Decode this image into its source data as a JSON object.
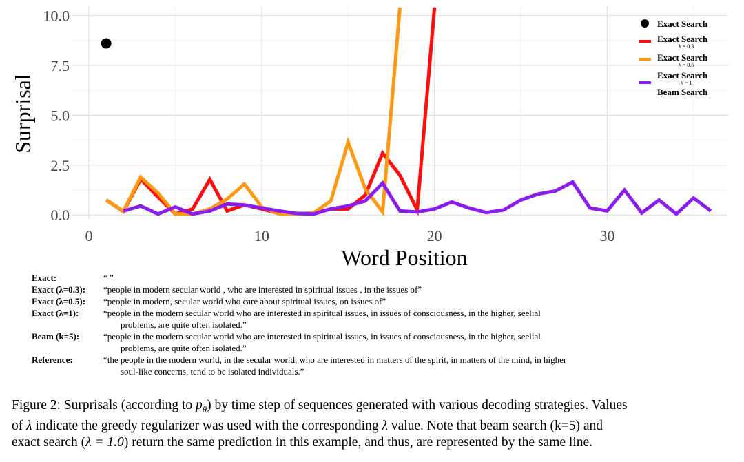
{
  "chart_data": {
    "type": "line",
    "xlabel": "Word Position",
    "ylabel": "Surprisal",
    "xlim": [
      -1,
      37
    ],
    "ylim": [
      -0.2,
      10.5
    ],
    "xticks": [
      0,
      10,
      20,
      30
    ],
    "yticks": [
      0.0,
      2.5,
      5.0,
      7.5,
      10.0
    ],
    "ytick_labels": [
      "0.0",
      "2.5",
      "5.0",
      "7.5",
      "10.0"
    ],
    "grid": true,
    "legend_position": "top-right",
    "series": [
      {
        "name": "Exact Search",
        "kind": "point",
        "color": "#000000",
        "x": [
          1
        ],
        "y": [
          8.6
        ]
      },
      {
        "name": "Exact Search",
        "subscript": "λ = 0.3",
        "kind": "line",
        "color": "#ff0d0d",
        "x": [
          1,
          2,
          3,
          4,
          5,
          6,
          7,
          8,
          9,
          10,
          11,
          12,
          13,
          14,
          15,
          16,
          17,
          18,
          19,
          20
        ],
        "y": [
          0.75,
          0.18,
          1.8,
          0.9,
          0.05,
          0.3,
          1.78,
          0.2,
          0.5,
          0.3,
          0.08,
          0.05,
          0.1,
          0.3,
          0.3,
          1.0,
          3.1,
          2.0,
          0.25,
          10.4
        ]
      },
      {
        "name": "Exact Search",
        "subscript": "λ = 0.5",
        "kind": "line",
        "color": "#ff9912",
        "x": [
          1,
          2,
          3,
          4,
          5,
          6,
          7,
          8,
          9,
          10,
          11,
          12,
          13,
          14,
          15,
          16,
          17,
          18
        ],
        "y": [
          0.75,
          0.2,
          1.9,
          1.1,
          0.05,
          0.05,
          0.3,
          0.8,
          1.55,
          0.4,
          0.05,
          0.05,
          0.1,
          0.7,
          3.65,
          1.3,
          0.15,
          10.4
        ]
      },
      {
        "name": "Exact Search",
        "subscript": "λ = 1",
        "name2": "Beam Search",
        "kind": "line",
        "color": "#8b1cf0",
        "x": [
          2,
          3,
          4,
          5,
          6,
          7,
          8,
          9,
          10,
          11,
          12,
          13,
          14,
          15,
          16,
          17,
          18,
          19,
          20,
          21,
          22,
          23,
          24,
          25,
          26,
          27,
          28,
          29,
          30,
          31,
          32,
          33,
          34,
          35,
          36
        ],
        "y": [
          0.2,
          0.45,
          0.05,
          0.4,
          0.05,
          0.2,
          0.55,
          0.5,
          0.35,
          0.2,
          0.08,
          0.05,
          0.3,
          0.45,
          0.7,
          1.6,
          0.2,
          0.15,
          0.3,
          0.65,
          0.35,
          0.12,
          0.25,
          0.75,
          1.05,
          1.2,
          1.65,
          0.35,
          0.2,
          1.25,
          0.1,
          0.75,
          0.05,
          0.85,
          0.2
        ]
      }
    ]
  },
  "sequences": [
    {
      "label": "Exact:",
      "text": "“ ”",
      "cont": ""
    },
    {
      "label": "Exact (λ=0.3):",
      "text": "“people in modern secular world , who are interested in spiritual issues , in the issues of”",
      "cont": ""
    },
    {
      "label": "Exact (λ=0.5):",
      "text": "“people in modern, secular world who care about spiritual issues, on issues of”",
      "cont": ""
    },
    {
      "label": "Exact (λ=1):",
      "text": "“people in the modern secular world who are interested in spiritual issues, in issues of consciousness, in the higher, seelial",
      "cont": "problems, are quite often isolated.”"
    },
    {
      "label": "Beam (k=5):",
      "text": "“people in the modern secular world who are interested in spiritual issues, in issues of consciousness, in the higher, seelial",
      "cont": "problems, are quite often isolated.”"
    },
    {
      "label": "Reference:",
      "text": "“the people in the modern world, in the secular world, who are interested in matters of the spirit, in matters of the mind, in higher",
      "cont": "soul-like concerns, tend to be isolated individuals.”"
    }
  ],
  "caption": {
    "line1_a": "Figure 2: Surprisals (according to ",
    "line1_math": "p",
    "line1_sub": "θ",
    "line1_b": ") by time step of sequences generated with various decoding strategies. Values",
    "line2_a": "of ",
    "line2_lambda": "λ",
    "line2_b": " indicate the greedy regularizer was used with the corresponding ",
    "line2_lambda2": "λ",
    "line2_c": " value.  Note that beam search (k=5) and",
    "line3_a": "exact search (",
    "line3_math": "λ = 1.0",
    "line3_b": ") return the same prediction in this example, and thus, are represented by the same line."
  }
}
